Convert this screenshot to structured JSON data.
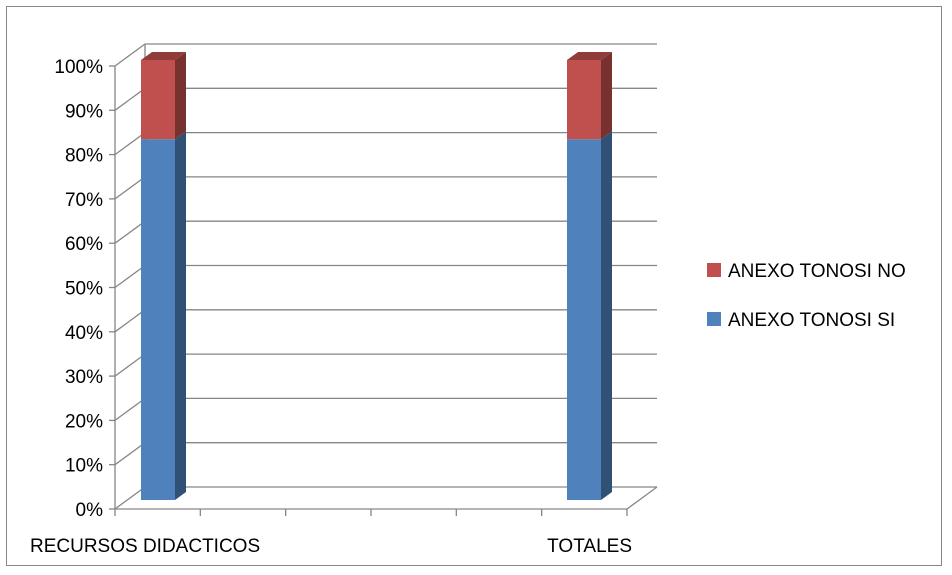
{
  "chart_data": {
    "type": "bar",
    "stacked": "percent",
    "three_d": true,
    "categories": [
      "RECURSOS DIDACTICOS",
      "",
      "",
      "",
      "",
      "TOTALES"
    ],
    "series": [
      {
        "name": "ANEXO TONOSI SI",
        "color": "#4F81BD",
        "values": [
          82,
          null,
          null,
          null,
          null,
          82
        ]
      },
      {
        "name": "ANEXO TONOSI NO",
        "color": "#C0504D",
        "values": [
          18,
          null,
          null,
          null,
          null,
          18
        ]
      }
    ],
    "y_ticks": [
      "0%",
      "10%",
      "20%",
      "30%",
      "40%",
      "50%",
      "60%",
      "70%",
      "80%",
      "90%",
      "100%"
    ],
    "ylim": [
      0,
      100
    ],
    "grid": true,
    "legend_position": "right",
    "title": "",
    "xlabel": "",
    "ylabel": ""
  }
}
